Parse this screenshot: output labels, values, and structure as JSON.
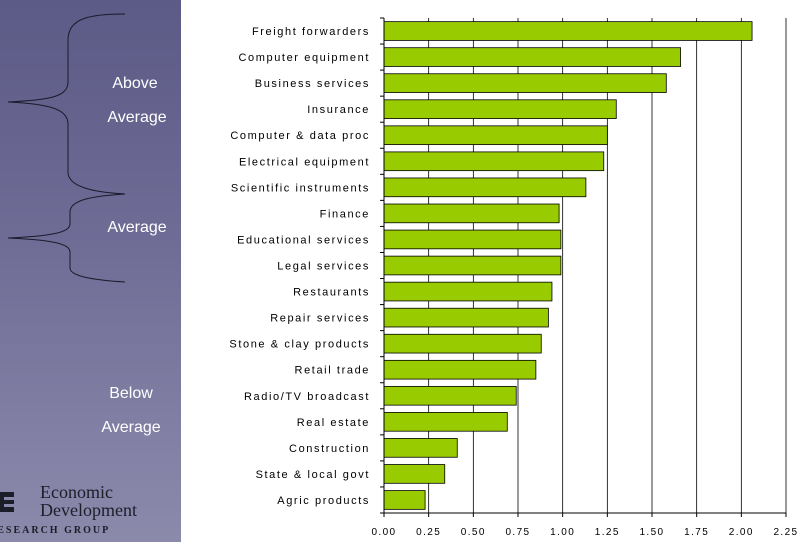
{
  "groups": {
    "above": [
      "Above",
      "Average"
    ],
    "average": "Average",
    "below": [
      "Below",
      "Average"
    ]
  },
  "logo": {
    "line1": "Economic",
    "line2": "Development",
    "line3": "RESEARCH GROUP"
  },
  "colors": {
    "bar_fill": "#99cc00",
    "bar_stroke": "#000000",
    "panel": "#6f6d96"
  },
  "chart_data": {
    "type": "bar",
    "orientation": "horizontal",
    "categories": [
      "Freight forwarders",
      "Computer equipment",
      "Business services",
      "Insurance",
      "Computer & data proc",
      "Electrical equipment",
      "Scientific instruments",
      "Finance",
      "Educational services",
      "Legal services",
      "Restaurants",
      "Repair services",
      "Stone & clay products",
      "Retail trade",
      "Radio/TV broadcast",
      "Real estate",
      "Construction",
      "State & local govt",
      "Agric products"
    ],
    "values": [
      2.06,
      1.66,
      1.58,
      1.3,
      1.25,
      1.23,
      1.13,
      0.98,
      0.99,
      0.99,
      0.94,
      0.92,
      0.88,
      0.85,
      0.74,
      0.69,
      0.41,
      0.34,
      0.23
    ],
    "xlim": [
      0,
      2.25
    ],
    "ticks": [
      "0.00",
      "0.25",
      "0.50",
      "0.75",
      "1.00",
      "1.25",
      "1.50",
      "1.75",
      "2.00",
      "2.25"
    ],
    "grid": "vertical",
    "title": "",
    "xlabel": "",
    "ylabel": ""
  }
}
